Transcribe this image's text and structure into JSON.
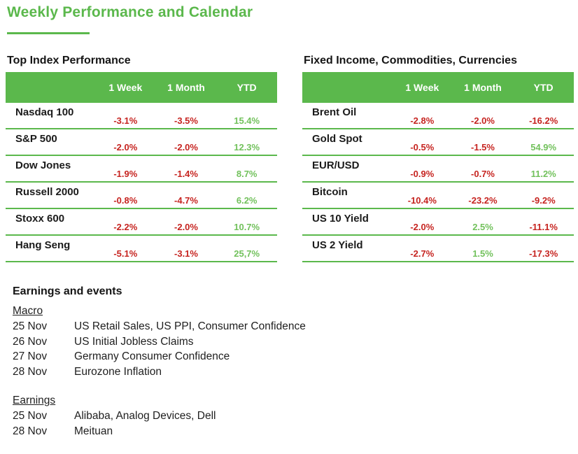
{
  "page": {
    "title": "Weekly Performance and Calendar"
  },
  "colors": {
    "brand_green": "#5BB84C",
    "positive_green": "#72C15C",
    "negative_red": "#C62420",
    "text": "#1E1E1E"
  },
  "tables": {
    "left": {
      "heading": "Top Index Performance",
      "columns": [
        "1 Week",
        "1 Month",
        "YTD"
      ],
      "rows": [
        {
          "name": "Nasdaq 100",
          "values": [
            "-3.1%",
            "-3.5%",
            "15.4%"
          ]
        },
        {
          "name": "S&P 500",
          "values": [
            "-2.0%",
            "-2.0%",
            "12.3%"
          ]
        },
        {
          "name": "Dow Jones",
          "values": [
            "-1.9%",
            "-1.4%",
            "8.7%"
          ]
        },
        {
          "name": "Russell 2000",
          "values": [
            "-0.8%",
            "-4.7%",
            "6.2%"
          ]
        },
        {
          "name": "Stoxx 600",
          "values": [
            "-2.2%",
            "-2.0%",
            "10.7%"
          ]
        },
        {
          "name": "Hang Seng",
          "values": [
            "-5.1%",
            "-3.1%",
            "25,7%"
          ]
        }
      ]
    },
    "right": {
      "heading": "Fixed Income, Commodities, Currencies",
      "columns": [
        "1 Week",
        "1 Month",
        "YTD"
      ],
      "rows": [
        {
          "name": "Brent Oil",
          "values": [
            "-2.8%",
            "-2.0%",
            "-16.2%"
          ]
        },
        {
          "name": "Gold Spot",
          "values": [
            "-0.5%",
            "-1.5%",
            "54.9%"
          ]
        },
        {
          "name": "EUR/USD",
          "values": [
            "-0.9%",
            "-0.7%",
            "11.2%"
          ]
        },
        {
          "name": "Bitcoin",
          "values": [
            "-10.4%",
            "-23.2%",
            "-9.2%"
          ]
        },
        {
          "name": "US 10 Yield",
          "values": [
            "-2.0%",
            "2.5%",
            "-11.1%"
          ]
        },
        {
          "name": "US 2 Yield",
          "values": [
            "-2.7%",
            "1.5%",
            "-17.3%"
          ]
        }
      ]
    }
  },
  "calendar": {
    "heading": "Earnings and events",
    "sections": [
      {
        "label": "Macro",
        "items": [
          {
            "date": "25 Nov",
            "text": "US Retail Sales, US PPI, Consumer Confidence"
          },
          {
            "date": "26 Nov",
            "text": "US Initial Jobless Claims"
          },
          {
            "date": "27 Nov",
            "text": "Germany Consumer Confidence"
          },
          {
            "date": "28 Nov",
            "text": "Eurozone Inflation"
          }
        ]
      },
      {
        "label": "Earnings",
        "items": [
          {
            "date": "25 Nov",
            "text": "Alibaba, Analog Devices, Dell"
          },
          {
            "date": "28 Nov",
            "text": "Meituan"
          }
        ]
      }
    ]
  }
}
